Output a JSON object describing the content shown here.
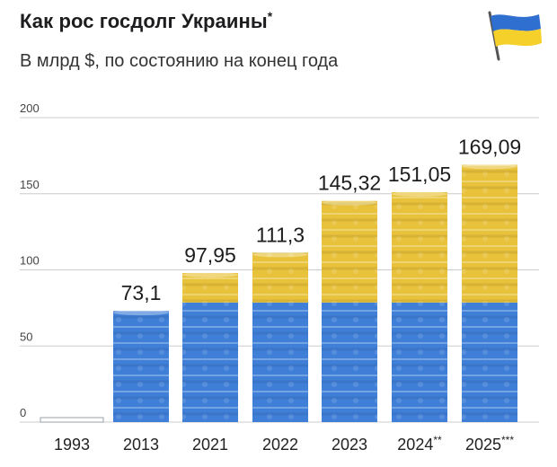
{
  "title": "Как рос госдолг Украины",
  "title_mark": "*",
  "subtitle": "В млрд $, по состоянию на конец года",
  "icons": {
    "flag": "ukraine-flag-icon"
  },
  "colors": {
    "bar_blue": "#3f7fd8",
    "bar_yellow": "#e8c23a",
    "grid": "#cccccc",
    "empty_bar_stroke": "#9aa0a6"
  },
  "chart_data": {
    "type": "bar",
    "title": "Как рос госдолг Украины*",
    "subtitle": "В млрд $, по состоянию на конец года",
    "categories": [
      "1993",
      "2013",
      "2021",
      "2022",
      "2023",
      "2024**",
      "2025***"
    ],
    "values": [
      0.3,
      73.1,
      97.95,
      111.3,
      145.32,
      151.05,
      169.09
    ],
    "value_labels": [
      "",
      "73,1",
      "97,95",
      "111,3",
      "145,32",
      "151,05",
      "169,09"
    ],
    "yticks": [
      "0",
      "50",
      "100",
      "150",
      "200"
    ],
    "ytick_values": [
      0,
      50,
      100,
      150,
      200
    ],
    "ylim": [
      0,
      200
    ],
    "grid": true,
    "legend": "none"
  }
}
